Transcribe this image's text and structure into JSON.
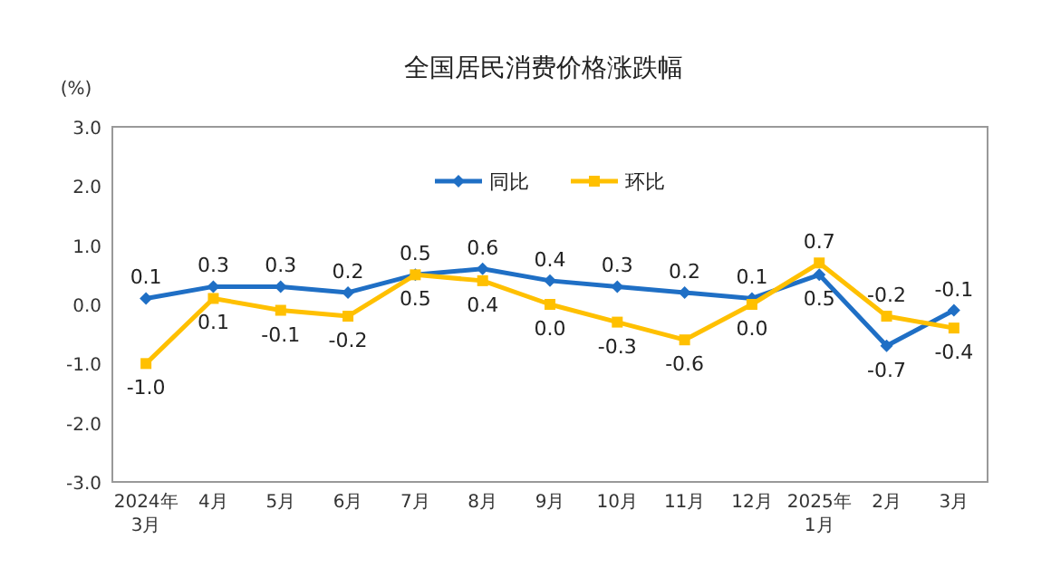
{
  "chart_data": {
    "type": "line",
    "title": "全国居民消费价格涨跌幅",
    "ylabel": "(%)",
    "categories": [
      "2024年\n3月",
      "4月",
      "5月",
      "6月",
      "7月",
      "8月",
      "9月",
      "10月",
      "11月",
      "12月",
      "2025年\n1月",
      "2月",
      "3月"
    ],
    "series": [
      {
        "name": "同比",
        "color": "#1f6fc5",
        "marker": "diamond",
        "values": [
          0.1,
          0.3,
          0.3,
          0.2,
          0.5,
          0.6,
          0.4,
          0.3,
          0.2,
          0.1,
          0.5,
          -0.7,
          -0.1
        ],
        "value_labels": [
          "0.1",
          "0.3",
          "0.3",
          "0.2",
          "0.5",
          "0.6",
          "0.4",
          "0.3",
          "0.2",
          "0.1",
          "0.5",
          "-0.7",
          "-0.1"
        ]
      },
      {
        "name": "环比",
        "color": "#ffc000",
        "marker": "square",
        "values": [
          -1.0,
          0.1,
          -0.1,
          -0.2,
          0.5,
          0.4,
          0.0,
          -0.3,
          -0.6,
          0.0,
          0.7,
          -0.2,
          -0.4
        ],
        "value_labels": [
          "-1.0",
          "0.1",
          "-0.1",
          "-0.2",
          "0.5",
          "0.4",
          "0.0",
          "-0.3",
          "-0.6",
          "0.0",
          "0.7",
          "-0.2",
          "-0.4"
        ]
      }
    ],
    "ylim": [
      -3,
      3
    ],
    "yticks": [
      {
        "value": 3,
        "label": "3.0"
      },
      {
        "value": 2,
        "label": "2.0"
      },
      {
        "value": 1,
        "label": "1.0"
      },
      {
        "value": 0,
        "label": "0.0"
      },
      {
        "value": -1,
        "label": "-1.0"
      },
      {
        "value": -2,
        "label": "-2.0"
      },
      {
        "value": -3,
        "label": "-3.0"
      }
    ],
    "legend": "top",
    "grid": false
  }
}
